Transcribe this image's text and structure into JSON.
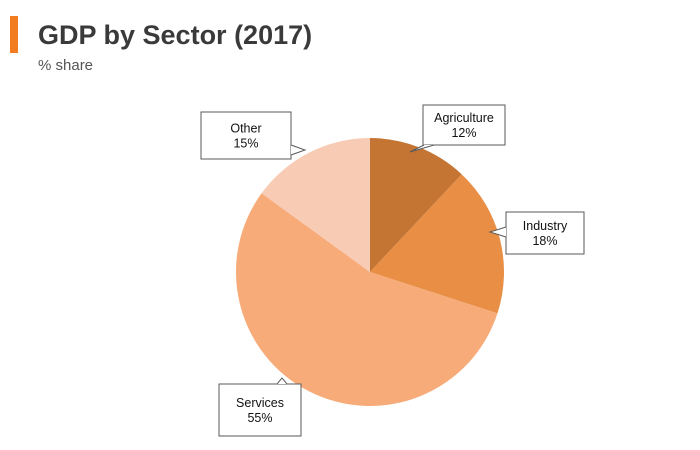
{
  "header": {
    "title": "GDP by Sector (2017)",
    "subtitle": "% share",
    "accent_color": "#f47c20"
  },
  "chart_data": {
    "type": "pie",
    "title": "GDP by Sector (2017)",
    "subtitle": "% share",
    "unit": "%",
    "start_angle_deg": 0,
    "direction": "clockwise",
    "slices": [
      {
        "label": "Agriculture",
        "value": 12,
        "display": "12%",
        "color": "#c47534"
      },
      {
        "label": "Industry",
        "value": 18,
        "display": "18%",
        "color": "#e88e45"
      },
      {
        "label": "Services",
        "value": 55,
        "display": "55%",
        "color": "#f7ab79"
      },
      {
        "label": "Other",
        "value": 15,
        "display": "15%",
        "color": "#f8cbb4"
      }
    ]
  }
}
